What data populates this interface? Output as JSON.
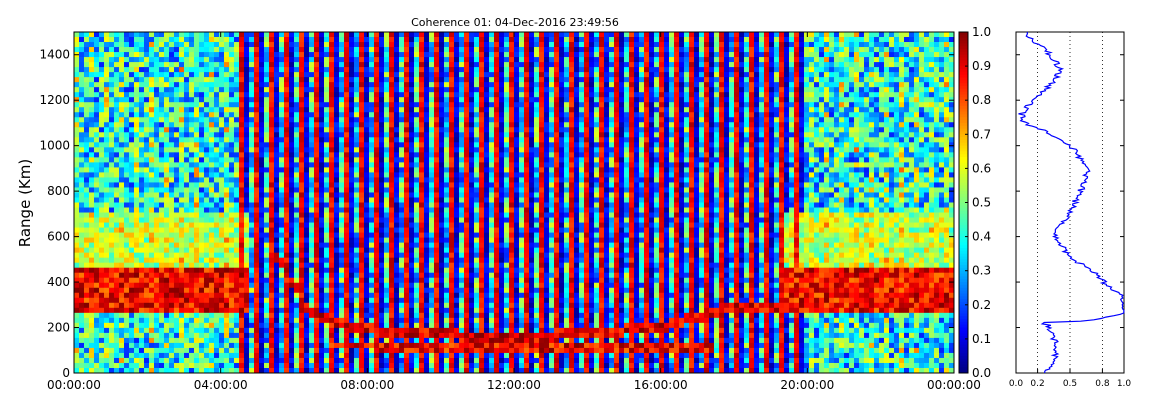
{
  "chart_data": [
    {
      "type": "heatmap",
      "title": "Coherence 01: 04-Dec-2016 23:49:56",
      "ylabel": "Range (Km)",
      "x_ticks": [
        "00:00:00",
        "04:00:00",
        "08:00:00",
        "12:00:00",
        "16:00:00",
        "20:00:00",
        "00:00:00"
      ],
      "y_ticks": [
        "0",
        "200",
        "400",
        "600",
        "800",
        "1000",
        "1200",
        "1400"
      ],
      "xlim_hours": [
        0,
        24
      ],
      "ylim_km": [
        0,
        1500
      ],
      "colorscale": "jet",
      "colorbar_ticks": [
        "0.0",
        "0.1",
        "0.2",
        "0.3",
        "0.4",
        "0.5",
        "0.6",
        "0.7",
        "0.8",
        "0.9",
        "1.0"
      ],
      "colorbar_range": [
        0.0,
        1.0
      ],
      "features": {
        "high_coherence_band_km": [
          270,
          470
        ],
        "band_hours": [
          [
            0,
            4.8
          ],
          [
            19.3,
            24
          ]
        ],
        "echo_trace_km": [
          [
            5.5,
            520
          ],
          [
            6.5,
            250
          ],
          [
            8,
            190
          ],
          [
            12,
            150
          ],
          [
            16,
            200
          ],
          [
            18,
            290
          ],
          [
            19.5,
            300
          ]
        ],
        "lower_trace_km": [
          [
            7,
            120
          ],
          [
            12,
            110
          ],
          [
            17.5,
            110
          ]
        ]
      }
    },
    {
      "type": "line",
      "title": "",
      "x_ticks": [
        "0.0",
        "0.2",
        "0.5",
        "0.8",
        "1.0"
      ],
      "xlim": [
        0,
        1
      ],
      "ylim_km": [
        0,
        1500
      ],
      "grid": "vertical dotted at 0.2, 0.5, 0.8",
      "color": "#0000ff",
      "profile": [
        [
          0,
          0.28
        ],
        [
          60,
          0.35
        ],
        [
          120,
          0.38
        ],
        [
          180,
          0.33
        ],
        [
          210,
          0.3
        ],
        [
          220,
          0.18
        ],
        [
          230,
          0.7
        ],
        [
          260,
          0.98
        ],
        [
          300,
          1.0
        ],
        [
          340,
          0.98
        ],
        [
          380,
          0.85
        ],
        [
          420,
          0.78
        ],
        [
          460,
          0.68
        ],
        [
          500,
          0.52
        ],
        [
          540,
          0.45
        ],
        [
          580,
          0.4
        ],
        [
          620,
          0.35
        ],
        [
          660,
          0.42
        ],
        [
          700,
          0.5
        ],
        [
          760,
          0.55
        ],
        [
          820,
          0.62
        ],
        [
          880,
          0.66
        ],
        [
          940,
          0.6
        ],
        [
          980,
          0.55
        ],
        [
          1020,
          0.42
        ],
        [
          1060,
          0.3
        ],
        [
          1100,
          0.08
        ],
        [
          1140,
          0.05
        ],
        [
          1180,
          0.12
        ],
        [
          1220,
          0.22
        ],
        [
          1260,
          0.3
        ],
        [
          1300,
          0.38
        ],
        [
          1340,
          0.4
        ],
        [
          1380,
          0.35
        ],
        [
          1420,
          0.28
        ],
        [
          1460,
          0.15
        ],
        [
          1500,
          0.08
        ]
      ]
    }
  ]
}
